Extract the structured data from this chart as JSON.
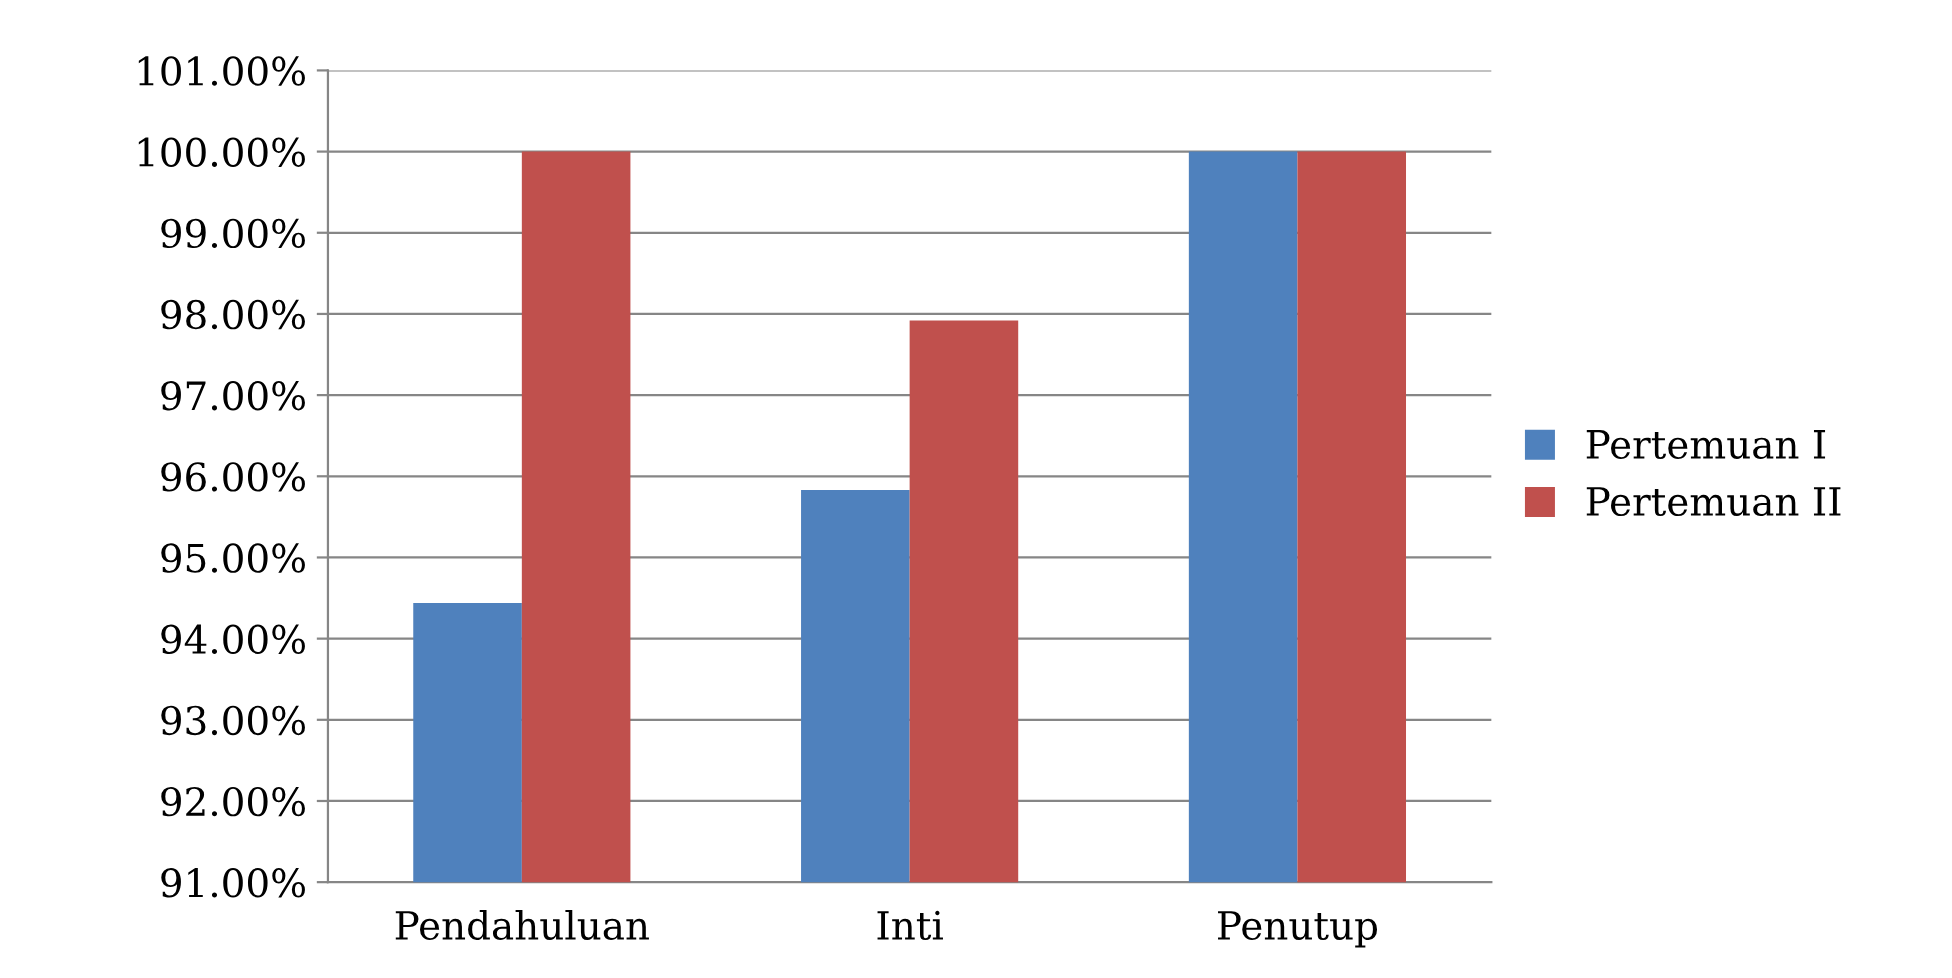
{
  "chart_data": {
    "type": "bar",
    "categories": [
      "Pendahuluan",
      "Inti",
      "Penutup"
    ],
    "series": [
      {
        "name": "Pertemuan I",
        "color": "#4f81bd",
        "values": [
          94.44,
          95.83,
          100
        ]
      },
      {
        "name": "Pertemuan II",
        "color": "#c0504d",
        "values": [
          100,
          97.92,
          100
        ]
      }
    ],
    "ylim": [
      91,
      101
    ],
    "yticks": [
      {
        "value": 91,
        "label": "91.00%"
      },
      {
        "value": 92,
        "label": "92.00%"
      },
      {
        "value": 93,
        "label": "93.00%"
      },
      {
        "value": 94,
        "label": "94.00%"
      },
      {
        "value": 95,
        "label": "95.00%"
      },
      {
        "value": 96,
        "label": "96.00%"
      },
      {
        "value": 97,
        "label": "97.00%"
      },
      {
        "value": 98,
        "label": "98.00%"
      },
      {
        "value": 99,
        "label": "99.00%"
      },
      {
        "value": 100,
        "label": "100.00%"
      },
      {
        "value": 101,
        "label": "101.00%"
      }
    ],
    "grid": "y",
    "legend": "right"
  }
}
